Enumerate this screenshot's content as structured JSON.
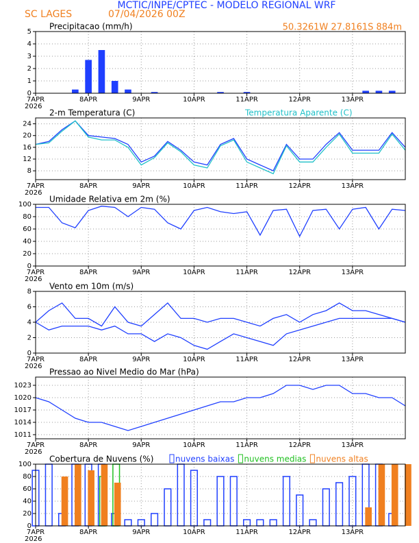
{
  "header": {
    "title": "MCTIC/INPE/CPTEC - MODELO REGIONAL WRF",
    "station": "SC LAGES",
    "datetime": "07/04/2026 00Z",
    "location": "50.3261W 27.8161S 884m"
  },
  "x_axis": {
    "days": [
      "7APR",
      "8APR",
      "9APR",
      "10APR",
      "11APR",
      "12APR",
      "13APR"
    ],
    "year": "2026"
  },
  "chart_data": [
    {
      "type": "bar",
      "title": "Precipitacao (mm/h)",
      "ylim": [
        0,
        5
      ],
      "yticks": [
        0,
        1,
        2,
        3,
        4,
        5
      ],
      "grid": true,
      "series": [
        {
          "color": "#1f3fff",
          "values": [
            0,
            0,
            0,
            0.3,
            2.7,
            3.5,
            1.0,
            0.3,
            0,
            0.1,
            0,
            0,
            0,
            0,
            0.1,
            0,
            0.1,
            0,
            0,
            0,
            0,
            0,
            0,
            0,
            0,
            0.2,
            0.2,
            0.2,
            0
          ]
        }
      ]
    },
    {
      "type": "line",
      "title": "2-m Temperatura (C)",
      "ylim": [
        5,
        26
      ],
      "yticks": [
        8,
        12,
        16,
        20,
        24
      ],
      "grid": true,
      "series": [
        {
          "color": "#1f3fff",
          "values": [
            17,
            18,
            22,
            25,
            20,
            19.5,
            19,
            17,
            11,
            13,
            18,
            15,
            11,
            10,
            17,
            19,
            12,
            10,
            8,
            17,
            12,
            12,
            17,
            21,
            15,
            15,
            15,
            21,
            16
          ]
        },
        {
          "name": "Temperatura Aparente (C)",
          "color": "#20c0c8",
          "values": [
            17,
            17.5,
            21.5,
            25,
            19.5,
            18.5,
            18.5,
            16,
            10,
            12.5,
            17.5,
            14.5,
            10,
            9,
            16.5,
            18.5,
            11,
            9,
            7,
            16.5,
            11,
            11,
            16,
            20.5,
            14,
            14,
            14,
            20.5,
            15
          ]
        }
      ]
    },
    {
      "type": "line",
      "title": "Umidade Relativa em 2m (%)",
      "ylim": [
        0,
        100
      ],
      "yticks": [
        0,
        20,
        40,
        60,
        80,
        100
      ],
      "grid": true,
      "series": [
        {
          "color": "#1f3fff",
          "values": [
            95,
            95,
            70,
            62,
            90,
            97,
            95,
            80,
            95,
            92,
            70,
            60,
            90,
            95,
            88,
            85,
            88,
            50,
            90,
            92,
            48,
            90,
            92,
            60,
            92,
            95,
            60,
            92,
            90
          ]
        }
      ]
    },
    {
      "type": "line",
      "title": "Vento em 10m (m/s)",
      "ylim": [
        0,
        8
      ],
      "yticks": [
        0,
        2,
        4,
        6,
        8
      ],
      "grid": true,
      "series": [
        {
          "color": "#1f3fff",
          "values": [
            4,
            5.5,
            6.5,
            4.5,
            4.5,
            3.5,
            6,
            4,
            3.5,
            5,
            6.5,
            4.5,
            4.5,
            4,
            4.5,
            4.5,
            4,
            3.5,
            4.5,
            5,
            4,
            5,
            5.5,
            6.5,
            5.5,
            5.5,
            5,
            4.5,
            4
          ]
        },
        {
          "color": "#1f3fff",
          "values": [
            4,
            3,
            3.5,
            3.5,
            3.5,
            3,
            3.5,
            2.5,
            2.5,
            1.5,
            2.5,
            2,
            1,
            0.5,
            1.5,
            2.5,
            2,
            1.5,
            1,
            2.5,
            3,
            3.5,
            4,
            4.5,
            4.5,
            4.5,
            4.5,
            4.5,
            4
          ]
        }
      ]
    },
    {
      "type": "line",
      "title": "Pressao ao Nivel Medio do Mar (hPa)",
      "ylim": [
        1010,
        1025
      ],
      "yticks": [
        1011,
        1014,
        1017,
        1020,
        1023
      ],
      "grid": true,
      "series": [
        {
          "color": "#1f3fff",
          "values": [
            1020,
            1019,
            1017,
            1015,
            1014,
            1014,
            1013,
            1012,
            1013,
            1014,
            1015,
            1016,
            1017,
            1018,
            1019,
            1019,
            1020,
            1020,
            1021,
            1023,
            1023,
            1022,
            1023,
            1023,
            1021,
            1021,
            1020,
            1020,
            1018
          ]
        }
      ]
    },
    {
      "type": "bar",
      "title": "Cobertura de Nuvens (%)",
      "ylim": [
        0,
        100
      ],
      "yticks": [
        0,
        20,
        40,
        60,
        80,
        100
      ],
      "grid": true,
      "series": [
        {
          "name": "nuvens baixas",
          "color": "#1f3fff",
          "values": [
            90,
            100,
            20,
            100,
            100,
            100,
            20,
            10,
            10,
            20,
            60,
            100,
            90,
            10,
            80,
            80,
            10,
            10,
            10,
            80,
            50,
            10,
            60,
            70,
            80,
            100,
            100,
            20,
            0
          ]
        },
        {
          "name": "nuvens medias",
          "color": "#20c020",
          "values": [
            0,
            0,
            0,
            0,
            0,
            80,
            100,
            0,
            0,
            0,
            0,
            0,
            0,
            0,
            0,
            0,
            0,
            0,
            0,
            0,
            0,
            0,
            0,
            0,
            0,
            0,
            0,
            0,
            0
          ]
        },
        {
          "name": "nuvens altas",
          "color": "#f08020",
          "values": [
            0,
            0,
            80,
            100,
            90,
            100,
            70,
            0,
            0,
            0,
            0,
            0,
            0,
            0,
            0,
            0,
            0,
            0,
            0,
            0,
            0,
            0,
            0,
            0,
            0,
            30,
            100,
            100,
            100
          ]
        }
      ]
    }
  ]
}
